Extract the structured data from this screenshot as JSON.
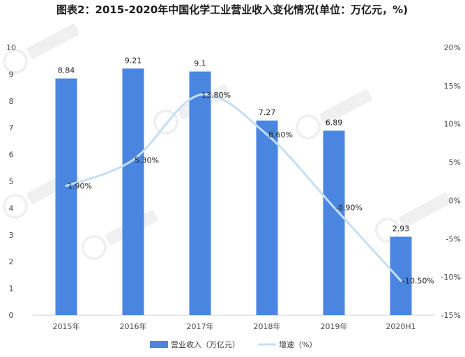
{
  "chart_data": {
    "type": "bar",
    "title": "图表2：2015-2020年中国化学工业营业收入变化情况(单位：万亿元，%)",
    "categories": [
      "2015年",
      "2016年",
      "2017年",
      "2018年",
      "2019年",
      "2020H1"
    ],
    "series": [
      {
        "name": "营业收入（万亿元）",
        "type": "bar",
        "axis": "left",
        "values": [
          8.84,
          9.21,
          9.1,
          7.27,
          6.89,
          2.93
        ],
        "labels": [
          "8.84",
          "9.21",
          "9.1",
          "7.27",
          "6.89",
          "2.93"
        ],
        "color": "#4a86e0"
      },
      {
        "name": "增速（%）",
        "type": "line",
        "axis": "right",
        "values": [
          1.9,
          5.3,
          13.8,
          8.6,
          -0.9,
          -10.5
        ],
        "labels": [
          "1.90%",
          "5.30%",
          "13.80%",
          "8.60%",
          "-0.90%",
          "-10.50%"
        ],
        "color": "#c5dff5"
      }
    ],
    "ylim_left": [
      0,
      10
    ],
    "yticks_left": [
      "0",
      "1",
      "2",
      "3",
      "4",
      "5",
      "6",
      "7",
      "8",
      "9",
      "10"
    ],
    "ylim_right": [
      -15,
      20
    ],
    "yticks_right": [
      "-15%",
      "-10%",
      "-5%",
      "0%",
      "5%",
      "10%",
      "15%",
      "20%"
    ],
    "legend_position": "bottom",
    "grid": false
  }
}
